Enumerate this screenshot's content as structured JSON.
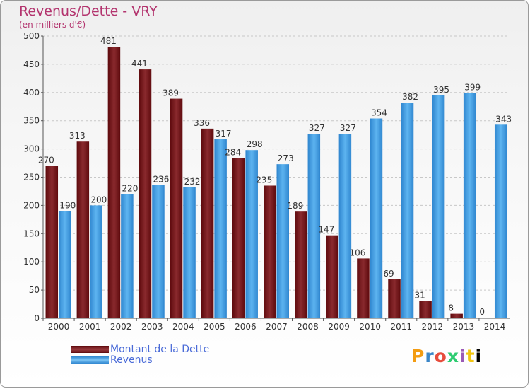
{
  "header": {
    "title": "Revenus/Dette - VRY",
    "subtitle": "(en milliers d'€)"
  },
  "legend": {
    "debt_label": "Montant de la Dette",
    "revenue_label": "Revenus"
  },
  "logo": {
    "text": "Proxiti"
  },
  "colors": {
    "debt": "#7a1a1d",
    "revenue": "#4aa3e8",
    "axis_text": "#333333",
    "title": "#b3346e"
  },
  "chart_data": {
    "type": "bar",
    "title": "Revenus/Dette - VRY",
    "subtitle": "(en milliers d'€)",
    "categories": [
      "2000",
      "2001",
      "2002",
      "2003",
      "2004",
      "2005",
      "2006",
      "2007",
      "2008",
      "2009",
      "2010",
      "2011",
      "2012",
      "2013",
      "2014"
    ],
    "series": [
      {
        "name": "Montant de la Dette",
        "values": [
          270,
          313,
          481,
          441,
          389,
          336,
          284,
          235,
          189,
          147,
          106,
          69,
          31,
          8,
          0
        ]
      },
      {
        "name": "Revenus",
        "values": [
          190,
          200,
          220,
          236,
          232,
          317,
          298,
          273,
          327,
          327,
          354,
          382,
          395,
          399,
          343
        ]
      }
    ],
    "ylim": [
      0,
      500
    ],
    "yticks": [
      0,
      50,
      100,
      150,
      200,
      250,
      300,
      350,
      400,
      450,
      500
    ],
    "grid": true,
    "legend_position": "bottom-left"
  }
}
